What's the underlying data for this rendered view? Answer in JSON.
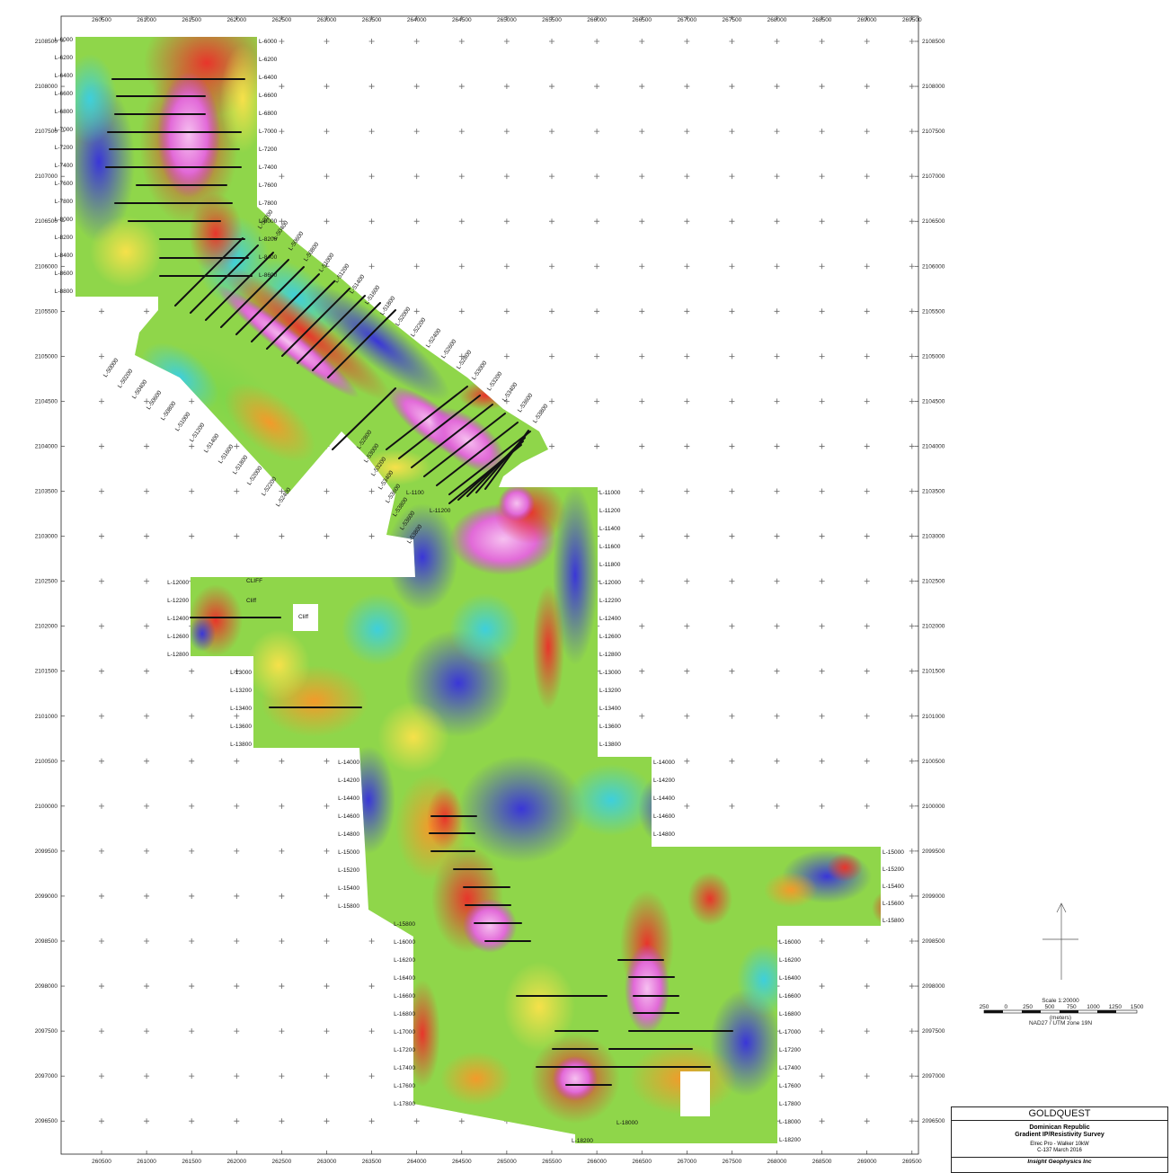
{
  "x_ticks": [
    "260500",
    "261000",
    "261500",
    "262000",
    "262500",
    "263000",
    "263500",
    "264000",
    "264500",
    "265000",
    "265500",
    "266000",
    "266500",
    "267000",
    "267500",
    "268000",
    "268500",
    "269000",
    "269500"
  ],
  "y_ticks": [
    "2108500",
    "2108000",
    "2107500",
    "2107000",
    "2106500",
    "2106000",
    "2105500",
    "2105000",
    "2104500",
    "2104000",
    "2103500",
    "2103000",
    "2102500",
    "2102000",
    "2101500",
    "2101000",
    "2100500",
    "2100000",
    "2099500",
    "2099000",
    "2098500",
    "2098000",
    "2097500",
    "2097000",
    "2096500"
  ],
  "line_labels_upper_left": [
    "L-6000",
    "L-6200",
    "L-6400",
    "L-6600",
    "L-6800",
    "L-7000",
    "L-7200",
    "L-7400",
    "L-7600",
    "L-7800",
    "L-8000",
    "L-8200",
    "L-8400",
    "L-8600",
    "L-8800"
  ],
  "line_labels_upper_right": [
    "L-6000",
    "L-6200",
    "L-6400",
    "L-6600",
    "L-6800",
    "L-7000",
    "L-7200",
    "L-7400",
    "L-7600",
    "L-7800",
    "L-8000",
    "L-8200",
    "L-8400",
    "L-8600"
  ],
  "line_labels_diagonal_sw": [
    "L-50000",
    "L-50200",
    "L-50400",
    "L-50600",
    "L-50800",
    "L-51000",
    "L-51200",
    "L-51400",
    "L-51600",
    "L-51800",
    "L-52000",
    "L-52200",
    "L-52400"
  ],
  "line_labels_diagonal_ne": [
    "L-50200",
    "L-50400",
    "L-50600",
    "L-50800",
    "L-51000",
    "L-51200",
    "L-51400",
    "L-51600",
    "L-51800",
    "L-52000",
    "L-52200",
    "L-52400",
    "L-52600",
    "L-52800",
    "L-53000",
    "L-53200",
    "L-53400",
    "L-53600",
    "L-53800"
  ],
  "line_labels_diagonal_mid": [
    "L-52800",
    "L-53000",
    "L-53200",
    "L-53400",
    "L-53600",
    "L-53800",
    "L-53600",
    "L-53800"
  ],
  "line_labels_mid_right": [
    "L-11000",
    "L-11200",
    "L-11400",
    "L-11600",
    "L-11800",
    "L-12000",
    "L-12200",
    "L-12400",
    "L-12600",
    "L-12800",
    "L-13000",
    "L-13200",
    "L-13400",
    "L-13600",
    "L-13800"
  ],
  "line_labels_cliff_left": [
    "L-12000",
    "L-12200",
    "L-12400",
    "L-12600",
    "L-12800"
  ],
  "line_labels_13k_left": [
    "L-13000",
    "L-13200",
    "L-13400",
    "L-13600",
    "L-13800"
  ],
  "line_labels_14k_left": [
    "L-14000",
    "L-14200",
    "L-14400",
    "L-14600",
    "L-14800",
    "L-15000",
    "L-15200",
    "L-15400",
    "L-15800"
  ],
  "line_labels_14k_right": [
    "L-14000",
    "L-14200",
    "L-14400",
    "L-14600",
    "L-14800"
  ],
  "line_labels_15k_right": [
    "L-15000",
    "L-15200",
    "L-15400",
    "L-15600",
    "L-15800"
  ],
  "line_labels_16k_left": [
    "L-15800",
    "L-16000",
    "L-16200",
    "L-16400",
    "L-16600",
    "L-16800",
    "L-17000",
    "L-17200",
    "L-17400",
    "L-17600",
    "L-17800"
  ],
  "line_labels_16k_right": [
    "L-16000",
    "L-16200",
    "L-16400",
    "L-16600",
    "L-16800",
    "L-17000",
    "L-17200",
    "L-17400",
    "L-17600",
    "L-17800",
    "L-18000",
    "L-18200"
  ],
  "line_labels_bottom": [
    "L-18000",
    "L-18200"
  ],
  "line_label_1100": "L-1100",
  "line_label_11200": "L-11200",
  "cliff_labels": [
    "CLIFF",
    "Cliff",
    "Cliff"
  ],
  "scale": {
    "label": "Scale 1:20000",
    "ticks": [
      "250",
      "0",
      "250",
      "500",
      "750",
      "1000",
      "1250",
      "1500"
    ],
    "units": "(meters)",
    "datum": "NAD27 / UTM zone 19N"
  },
  "title_block": {
    "company": "GOLDQUEST",
    "line1": "Dominican Republic",
    "line2": "Gradient IP/Resistivity Survey",
    "line3": "Elrec Pro - Walker 10kW",
    "line4": "C-137     March 2016",
    "footer": "Insight Geophysics Inc"
  },
  "colors": {
    "purple": "#b11fd0",
    "magenta": "#e23fb0",
    "red": "#e8352b",
    "orange": "#f39a2a",
    "yellow": "#f6e14a",
    "green": "#8fd64a",
    "cyan": "#3ecfdc",
    "blue": "#2f6df0",
    "deepblue": "#3a36d8",
    "pink": "#f2a9ee"
  }
}
